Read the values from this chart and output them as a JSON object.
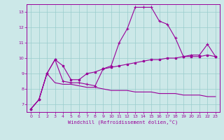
{
  "xlabel": "Windchill (Refroidissement éolien,°C)",
  "background_color": "#cce8e8",
  "grid_color": "#99cccc",
  "line_color": "#990099",
  "xlim": [
    -0.5,
    23.5
  ],
  "ylim": [
    6.5,
    13.5
  ],
  "xticks": [
    0,
    1,
    2,
    3,
    4,
    5,
    6,
    7,
    8,
    9,
    10,
    11,
    12,
    13,
    14,
    15,
    16,
    17,
    18,
    19,
    20,
    21,
    22,
    23
  ],
  "yticks": [
    7,
    8,
    9,
    10,
    11,
    12,
    13
  ],
  "line1_x": [
    0,
    1,
    2,
    3,
    4,
    5,
    6,
    7,
    8,
    9,
    10,
    11,
    12,
    13,
    14,
    15,
    16,
    17,
    18,
    19,
    20,
    21,
    22,
    23
  ],
  "line1_y": [
    6.7,
    7.3,
    9.0,
    9.9,
    8.5,
    8.4,
    8.4,
    8.3,
    8.2,
    9.3,
    9.5,
    11.0,
    11.9,
    13.3,
    13.3,
    13.3,
    12.4,
    12.2,
    11.3,
    10.1,
    10.2,
    10.2,
    10.9,
    10.1
  ],
  "line2_x": [
    0,
    1,
    2,
    3,
    4,
    5,
    6,
    7,
    8,
    9,
    10,
    11,
    12,
    13,
    14,
    15,
    16,
    17,
    18,
    19,
    20,
    21,
    22,
    23
  ],
  "line2_y": [
    6.7,
    7.3,
    9.0,
    8.4,
    8.3,
    8.3,
    8.2,
    8.1,
    8.1,
    8.0,
    7.9,
    7.9,
    7.9,
    7.8,
    7.8,
    7.8,
    7.7,
    7.7,
    7.7,
    7.6,
    7.6,
    7.6,
    7.5,
    7.5
  ],
  "line3_x": [
    0,
    1,
    2,
    3,
    4,
    5,
    6,
    7,
    8,
    9,
    10,
    11,
    12,
    13,
    14,
    15,
    16,
    17,
    18,
    19,
    20,
    21,
    22,
    23
  ],
  "line3_y": [
    6.7,
    7.3,
    9.0,
    9.9,
    9.5,
    8.6,
    8.6,
    9.0,
    9.1,
    9.3,
    9.4,
    9.5,
    9.6,
    9.7,
    9.8,
    9.9,
    9.9,
    10.0,
    10.0,
    10.1,
    10.1,
    10.1,
    10.2,
    10.1
  ]
}
